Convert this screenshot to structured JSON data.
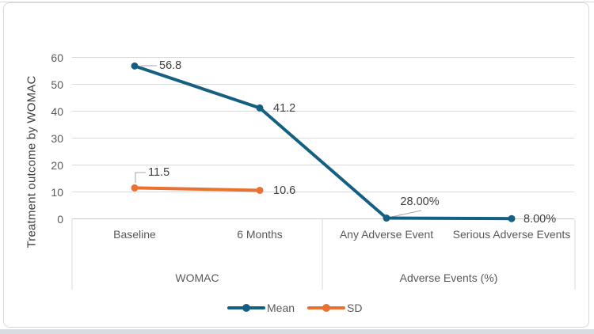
{
  "chart_data": {
    "type": "line",
    "title": "",
    "ylabel": "Treatment outcome by WOMAC",
    "ylim": [
      0,
      60
    ],
    "yticks": [
      0,
      10,
      20,
      30,
      40,
      50,
      60
    ],
    "categories": [
      "Baseline",
      "6 Months",
      "Any Adverse Event",
      "Serious Adverse Events"
    ],
    "category_groups": [
      {
        "label": "WOMAC",
        "span": [
          0,
          1
        ]
      },
      {
        "label": "Adverse Events (%)",
        "span": [
          2,
          3
        ]
      }
    ],
    "series": [
      {
        "name": "Mean",
        "color": "#156082",
        "values": [
          56.8,
          41.2,
          0.28,
          0.08
        ],
        "data_labels": [
          "56.8",
          "41.2",
          "28.00%",
          "8.00%"
        ]
      },
      {
        "name": "SD",
        "color": "#E97132",
        "values": [
          11.5,
          10.6,
          null,
          null
        ],
        "data_labels": [
          "11.5",
          "10.6",
          null,
          null
        ]
      }
    ],
    "legend": {
      "position": "bottom",
      "entries": [
        "Mean",
        "SD"
      ]
    },
    "grid": true,
    "colors": {
      "gridline": "#d9d9d9",
      "axis_line": "#c8c8c8",
      "leader_line": "#a6a6a6",
      "axis_text": "#595959",
      "data_label_text": "#404040",
      "frame_border": "#d9d9d9",
      "bottom_strip": "#d9dce1"
    }
  }
}
